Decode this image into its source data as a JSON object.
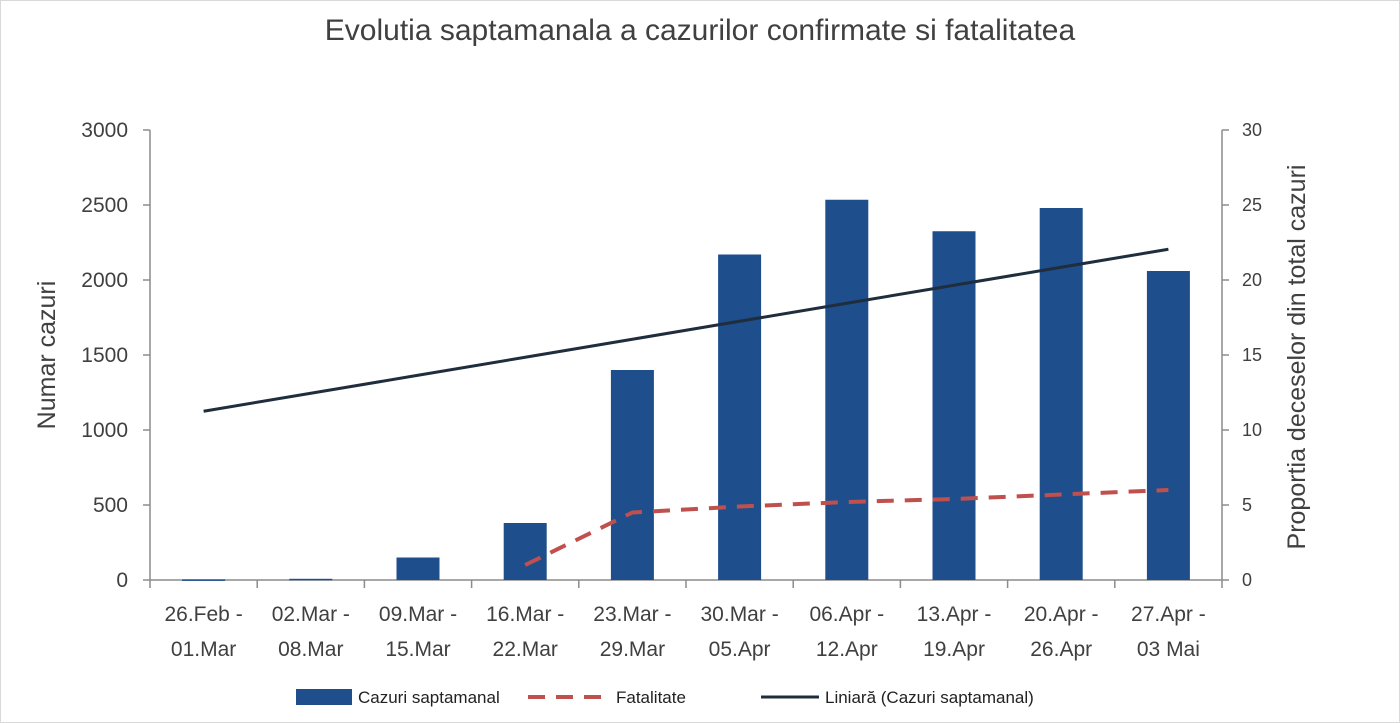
{
  "chart_data": {
    "type": "bar",
    "title": "Evolutia saptamanala a cazurilor confirmate si fatalitatea",
    "categories": [
      [
        "26.Feb -",
        "01.Mar"
      ],
      [
        "02.Mar -",
        "08.Mar"
      ],
      [
        "09.Mar -",
        "15.Mar"
      ],
      [
        "16.Mar -",
        "22.Mar"
      ],
      [
        "23.Mar -",
        "29.Mar"
      ],
      [
        "30.Mar -",
        "05.Apr"
      ],
      [
        "06.Apr -",
        "12.Apr"
      ],
      [
        "13.Apr -",
        "19.Apr"
      ],
      [
        "20.Apr -",
        "26.Apr"
      ],
      [
        "27.Apr -",
        "03 Mai"
      ]
    ],
    "ylabel": "Numar cazuri",
    "y2label": "Proportia deceselor din total cazuri",
    "ylim": [
      0,
      3000
    ],
    "y2lim": [
      0,
      30
    ],
    "yticks": [
      0,
      500,
      1000,
      1500,
      2000,
      2500,
      3000
    ],
    "y2ticks": [
      0,
      5,
      10,
      15,
      20,
      25,
      30
    ],
    "grid": false,
    "legend_position": "bottom",
    "series": [
      {
        "name": "Cazuri saptamanal",
        "kind": "bar",
        "axis": "left",
        "color": "#1f4e8c",
        "values": [
          4,
          8,
          150,
          380,
          1400,
          2170,
          2535,
          2325,
          2480,
          2060
        ]
      },
      {
        "name": "Fatalitate",
        "kind": "line-dashed",
        "axis": "right",
        "color": "#c0504d",
        "values": [
          null,
          null,
          null,
          1.0,
          4.5,
          4.9,
          5.2,
          5.4,
          5.7,
          6.0
        ]
      },
      {
        "name": "Liniară (Cazuri saptamanal)",
        "kind": "trendline",
        "axis": "left",
        "color": "#1f2d3d",
        "values": [
          1125,
          1245,
          1365,
          1485,
          1605,
          1725,
          1845,
          1965,
          2085,
          2205
        ]
      }
    ]
  }
}
